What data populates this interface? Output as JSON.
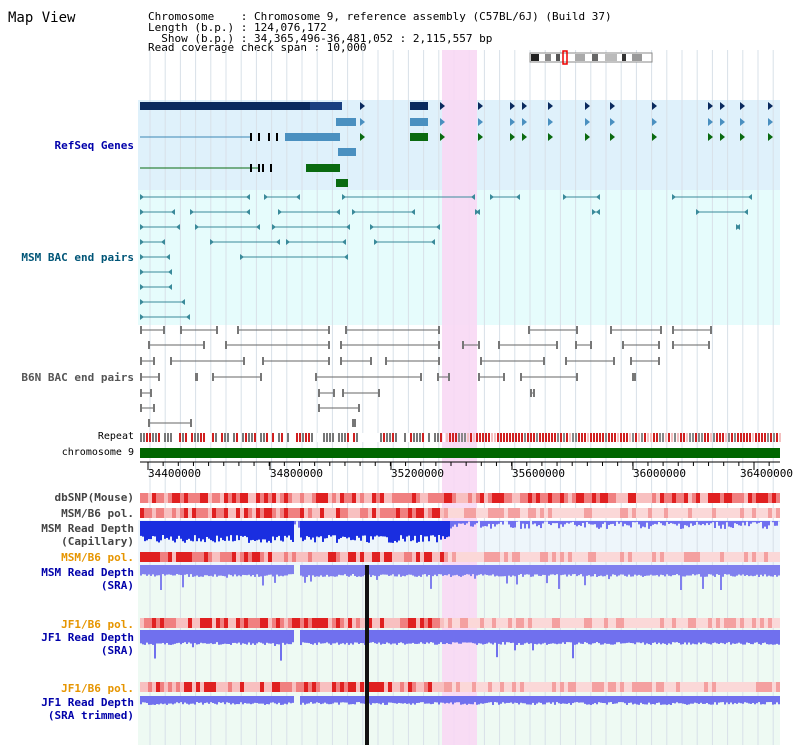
{
  "header": {
    "title": "Map View",
    "chromosome_line": "Chromosome    : Chromosome 9, reference assembly (C57BL/6J) (Build 37)",
    "length_line": "Length (b.p.) : 124,076,172",
    "show_line": "  Show (b.p.) : 34,365,496-36,481,052 : 2,115,557 bp",
    "coverage_line": "Read coverage check span : 10,000"
  },
  "tracks": {
    "refseq": "RefSeq Genes",
    "msm_bac": "MSM BAC end pairs",
    "b6n_bac": "B6N BAC end pairs",
    "repeat": "Repeat",
    "chromosome": "chromosome 9",
    "dbsnp": "dbSNP(Mouse)",
    "msm_b6_pol_1": "MSM/B6 pol.",
    "msm_read_cap": "MSM Read Depth\n(Capillary)",
    "msm_b6_pol_2": "MSM/B6 pol.",
    "msm_read_sra": "MSM Read Depth\n(SRA)",
    "jf1_b6_pol_1": "JF1/B6 pol.",
    "jf1_read_sra": "JF1 Read Depth\n(SRA)",
    "jf1_b6_pol_2": "JF1/B6 pol.",
    "jf1_read_trim": "JF1 Read Depth\n(SRA trimmed)"
  },
  "axis": {
    "ticks": [
      "34400000",
      "34800000",
      "35200000",
      "35600000",
      "36000000",
      "36400000"
    ]
  },
  "colors": {
    "refseq_bg": "#dff1fb",
    "msm_bac_bg": "#e6fcfc",
    "highlight": "#f8d8f4",
    "chrom_bar": "#006600",
    "label_blue": "#0000aa",
    "label_orange": "#e69500",
    "label_teal": "#005577"
  }
}
